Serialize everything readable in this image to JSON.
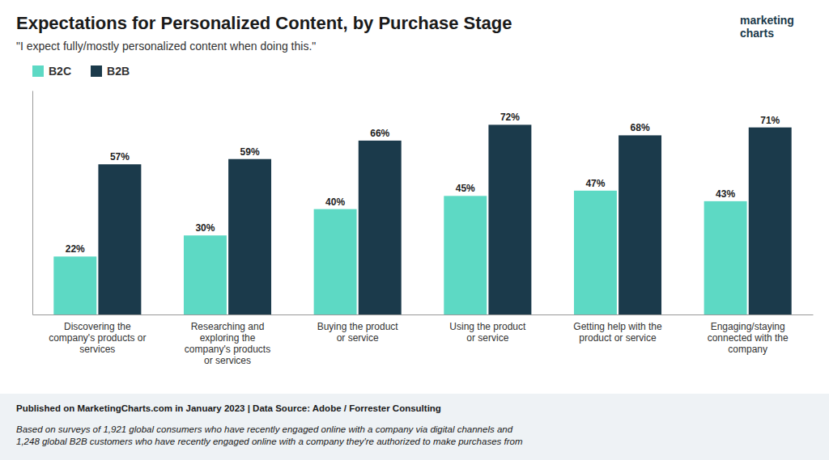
{
  "chart_data": {
    "type": "bar",
    "title": "Expectations for Personalized Content, by Purchase Stage",
    "subtitle": "\"I expect fully/mostly personalized content when doing this.\"",
    "categories": [
      "Discovering the\ncompany's products or\nservices",
      "Researching and\nexploring the\ncompany's products\nor services",
      "Buying the product\nor service",
      "Using the product\nor service",
      "Getting help with the\nproduct or service",
      "Engaging/staying\nconnected with the\ncompany"
    ],
    "series": [
      {
        "name": "B2C",
        "color": "#5DD9C4",
        "values": [
          22,
          30,
          40,
          45,
          47,
          43
        ],
        "value_labels": [
          "22%",
          "30%",
          "40%",
          "45%",
          "47%",
          "43%"
        ]
      },
      {
        "name": "B2B",
        "color": "#1B3A4B",
        "values": [
          57,
          59,
          66,
          72,
          68,
          71
        ],
        "value_labels": [
          "57%",
          "59%",
          "66%",
          "72%",
          "68%",
          "71%"
        ]
      }
    ],
    "ylim": [
      0,
      85
    ],
    "tick_labels": "x",
    "data_labels": true,
    "grid": false,
    "legend": "upper left",
    "annotations": [
      "marketing\ncharts",
      "Published on MarketingCharts.com in January 2023 | Data Source: Adobe / Forrester Consulting",
      "Based on surveys of 1,921 global consumers who have recently engaged online with a company via digital channels and\n1,248 global B2B customers who have recently engaged online with a company they're authorized to make purchases from"
    ]
  }
}
